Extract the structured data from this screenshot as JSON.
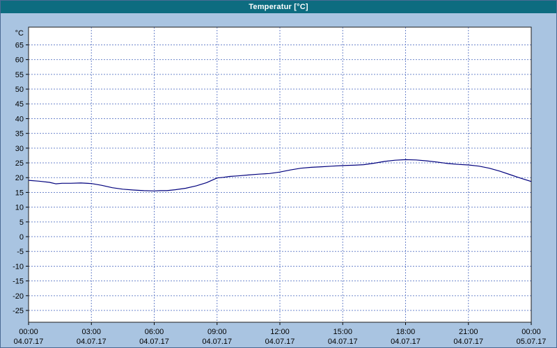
{
  "window": {
    "title": "Temperatur [°C]"
  },
  "colors": {
    "page_bg": "#a9c4e1",
    "titlebar_bg": "#0d6c80",
    "titlebar_text": "#ffffff",
    "plot_bg": "#ffffff",
    "plot_border": "#1a1a1a",
    "grid": "#6e86cc",
    "axis": "#000000",
    "tick_text": "#000000",
    "line": "#00007d"
  },
  "chart_data": {
    "type": "line",
    "title": "Temperatur [°C]",
    "xlabel": "",
    "ylabel": "°C",
    "ylim": [
      -29,
      71
    ],
    "y_ticks": [
      65,
      60,
      55,
      50,
      45,
      40,
      35,
      30,
      25,
      20,
      15,
      10,
      5,
      0,
      -5,
      -10,
      -15,
      -20,
      -25
    ],
    "x_range_hours": [
      0,
      24
    ],
    "x_ticks": [
      {
        "hour": 0,
        "time": "00:00",
        "date": "04.07.17"
      },
      {
        "hour": 3,
        "time": "03:00",
        "date": "04.07.17"
      },
      {
        "hour": 6,
        "time": "06:00",
        "date": "04.07.17"
      },
      {
        "hour": 9,
        "time": "09:00",
        "date": "04.07.17"
      },
      {
        "hour": 12,
        "time": "12:00",
        "date": "04.07.17"
      },
      {
        "hour": 15,
        "time": "15:00",
        "date": "04.07.17"
      },
      {
        "hour": 18,
        "time": "18:00",
        "date": "04.07.17"
      },
      {
        "hour": 21,
        "time": "21:00",
        "date": "04.07.17"
      },
      {
        "hour": 24,
        "time": "00:00",
        "date": "05.07.17"
      }
    ],
    "grid": true,
    "legend_position": "none",
    "series": [
      {
        "name": "Temperatur",
        "points": [
          [
            0,
            19.1
          ],
          [
            0.5,
            18.8
          ],
          [
            1,
            18.4
          ],
          [
            1.3,
            17.9
          ],
          [
            1.6,
            18.1
          ],
          [
            2,
            18.1
          ],
          [
            2.5,
            18.2
          ],
          [
            3,
            18.0
          ],
          [
            3.5,
            17.4
          ],
          [
            4,
            16.6
          ],
          [
            4.5,
            16.1
          ],
          [
            5,
            15.8
          ],
          [
            5.5,
            15.6
          ],
          [
            6,
            15.5
          ],
          [
            6.3,
            15.6
          ],
          [
            6.6,
            15.6
          ],
          [
            7,
            15.9
          ],
          [
            7.5,
            16.4
          ],
          [
            8,
            17.2
          ],
          [
            8.5,
            18.3
          ],
          [
            9,
            19.9
          ],
          [
            9.3,
            20.1
          ],
          [
            9.6,
            20.4
          ],
          [
            10,
            20.6
          ],
          [
            10.5,
            20.9
          ],
          [
            11,
            21.2
          ],
          [
            11.5,
            21.4
          ],
          [
            12,
            21.9
          ],
          [
            12.5,
            22.6
          ],
          [
            13,
            23.2
          ],
          [
            13.5,
            23.5
          ],
          [
            14,
            23.7
          ],
          [
            14.5,
            23.9
          ],
          [
            15,
            24.1
          ],
          [
            15.5,
            24.2
          ],
          [
            16,
            24.4
          ],
          [
            16.5,
            24.9
          ],
          [
            17,
            25.5
          ],
          [
            17.5,
            25.9
          ],
          [
            18,
            26.1
          ],
          [
            18.5,
            26.0
          ],
          [
            19,
            25.7
          ],
          [
            19.5,
            25.3
          ],
          [
            20,
            24.8
          ],
          [
            20.5,
            24.5
          ],
          [
            21,
            24.3
          ],
          [
            21.5,
            23.9
          ],
          [
            22,
            23.2
          ],
          [
            22.5,
            22.2
          ],
          [
            23,
            21.0
          ],
          [
            23.5,
            19.8
          ],
          [
            24,
            18.7
          ]
        ]
      }
    ]
  }
}
